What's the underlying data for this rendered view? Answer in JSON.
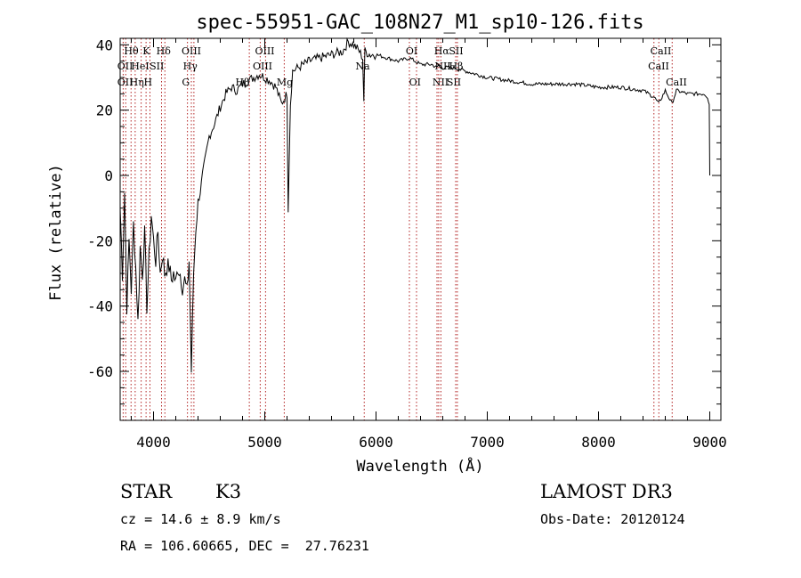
{
  "chart_data": {
    "type": "line",
    "title": "spec-55951-GAC_108N27_M1_sp10-126.fits",
    "xlabel": "Wavelength (Å)",
    "ylabel": "Flux (relative)",
    "xlim": [
      3700,
      9100
    ],
    "ylim": [
      -75,
      42
    ],
    "xticks": [
      4000,
      5000,
      6000,
      7000,
      8000,
      9000
    ],
    "yticks": [
      -60,
      -40,
      -20,
      0,
      20,
      40
    ],
    "grid": false,
    "line_color": "#000000",
    "marker_color": "#b22222",
    "series": [
      {
        "x": [
          3700,
          3720,
          3740,
          3760,
          3780,
          3800,
          3820,
          3840,
          3860,
          3880,
          3900,
          3920,
          3940,
          3960,
          3980,
          4000,
          4020,
          4040,
          4060,
          4080,
          4100,
          4120,
          4140,
          4160,
          4180,
          4200,
          4220,
          4240,
          4260,
          4280,
          4300,
          4320,
          4340,
          4360,
          4380,
          4400,
          4420,
          4440,
          4460,
          4480,
          4500,
          4550,
          4600,
          4650,
          4700,
          4750,
          4800,
          4850,
          4900,
          4950,
          5000,
          5050,
          5100,
          5150,
          5200,
          5210,
          5230,
          5250,
          5300,
          5400,
          5500,
          5600,
          5700,
          5750,
          5800,
          5850,
          5880,
          5890,
          5900,
          5950,
          6000,
          6100,
          6200,
          6300,
          6400,
          6500,
          6550,
          6563,
          6600,
          6700,
          6800,
          7000,
          7200,
          7400,
          7600,
          7800,
          8000,
          8200,
          8400,
          8500,
          8540,
          8600,
          8660,
          8700,
          8800,
          8900,
          8950,
          8980,
          8995,
          9000
        ],
        "y": [
          -10,
          -30,
          -5,
          -40,
          -20,
          -35,
          -15,
          -28,
          -45,
          -22,
          -30,
          -18,
          -40,
          -25,
          -12,
          -20,
          -26,
          -17,
          -30,
          -24,
          -30,
          -28,
          -28,
          -32,
          -30,
          -33,
          -28,
          -30,
          -34,
          -32,
          -36,
          -26,
          -60,
          -30,
          -16,
          -8,
          -5,
          0,
          4,
          8,
          12,
          16,
          21,
          25,
          27,
          26,
          28,
          29,
          30,
          31,
          30,
          29,
          27,
          22,
          25,
          -10,
          22,
          32,
          33,
          35,
          36,
          37,
          38,
          41,
          40,
          38,
          36,
          23,
          38,
          37,
          37,
          36,
          35,
          36,
          34,
          34,
          33,
          34,
          33,
          33,
          32,
          30,
          29,
          28,
          28,
          28,
          27,
          27,
          26,
          24,
          22,
          26,
          22,
          26,
          25,
          25,
          25,
          24,
          22,
          0
        ],
        "labeled": false
      }
    ],
    "lines": [
      {
        "x": 3727,
        "labels": [
          "OII"
        ]
      },
      {
        "x": 3750,
        "labels": [
          "OII"
        ]
      },
      {
        "x": 3798,
        "labels": [
          "Hθ"
        ]
      },
      {
        "x": 3835,
        "labels": [
          "Hη"
        ]
      },
      {
        "x": 3889,
        "labels": [
          "HeI"
        ]
      },
      {
        "x": 3933,
        "labels": [
          "K"
        ]
      },
      {
        "x": 3968,
        "labels": [
          "H"
        ]
      },
      {
        "x": 4072,
        "labels": [
          "SII"
        ]
      },
      {
        "x": 4102,
        "labels": [
          "Hδ"
        ]
      },
      {
        "x": 4305,
        "labels": [
          "G"
        ]
      },
      {
        "x": 4340,
        "labels": [
          "Hγ"
        ]
      },
      {
        "x": 4363,
        "labels": [
          "OIII"
        ]
      },
      {
        "x": 4861,
        "labels": [
          "Hβ"
        ]
      },
      {
        "x": 4959,
        "labels": [
          "OIII"
        ]
      },
      {
        "x": 5007,
        "labels": [
          "OIII"
        ]
      },
      {
        "x": 5175,
        "labels": [
          "Mg"
        ]
      },
      {
        "x": 5894,
        "labels": [
          "Na"
        ]
      },
      {
        "x": 6300,
        "labels": [
          "OI"
        ]
      },
      {
        "x": 6364,
        "labels": [
          "OI"
        ]
      },
      {
        "x": 6548,
        "labels": [
          "NII"
        ]
      },
      {
        "x": 6563,
        "labels": [
          "Hα"
        ]
      },
      {
        "x": 6583,
        "labels": [
          "NII"
        ]
      },
      {
        "x": 6716,
        "labels": [
          "SII"
        ]
      },
      {
        "x": 6731,
        "labels": [
          "SII"
        ]
      },
      {
        "x": 8498,
        "labels": [
          "CaII"
        ]
      },
      {
        "x": 8542,
        "labels": [
          "CaII"
        ]
      },
      {
        "x": 8662,
        "labels": [
          "CaII"
        ]
      }
    ],
    "line_labels": [
      {
        "text": "Hθ",
        "x": 3800,
        "row": 0
      },
      {
        "text": "K",
        "x": 3935,
        "row": 0
      },
      {
        "text": "Hδ",
        "x": 4090,
        "row": 0
      },
      {
        "text": "OIII",
        "x": 4340,
        "row": 0
      },
      {
        "text": "OIII",
        "x": 5000,
        "row": 0
      },
      {
        "text": "OI",
        "x": 6320,
        "row": 0
      },
      {
        "text": "Hα",
        "x": 6590,
        "row": 0
      },
      {
        "text": "SII",
        "x": 6720,
        "row": 0
      },
      {
        "text": "CaII",
        "x": 8560,
        "row": 0
      },
      {
        "text": "OII",
        "x": 3745,
        "row": 1
      },
      {
        "text": "HeI",
        "x": 3880,
        "row": 1
      },
      {
        "text": "SII",
        "x": 4030,
        "row": 1
      },
      {
        "text": "Hγ",
        "x": 4330,
        "row": 1
      },
      {
        "text": "OIII",
        "x": 4980,
        "row": 1
      },
      {
        "text": "Na",
        "x": 5880,
        "row": 1
      },
      {
        "text": "NII",
        "x": 6600,
        "row": 1
      },
      {
        "text": "Hβ",
        "x": 6720,
        "row": 1
      },
      {
        "text": "CaII",
        "x": 8540,
        "row": 1
      },
      {
        "text": "OII",
        "x": 3745,
        "row": 2
      },
      {
        "text": "Hη",
        "x": 3850,
        "row": 2
      },
      {
        "text": "H",
        "x": 3950,
        "row": 2
      },
      {
        "text": "G",
        "x": 4290,
        "row": 2
      },
      {
        "text": "Hβ",
        "x": 4800,
        "row": 2
      },
      {
        "text": "Mg",
        "x": 5180,
        "row": 2
      },
      {
        "text": "OI",
        "x": 6350,
        "row": 2
      },
      {
        "text": "NII",
        "x": 6580,
        "row": 2
      },
      {
        "text": "SII",
        "x": 6700,
        "row": 2
      },
      {
        "text": "CaII",
        "x": 8700,
        "row": 2
      }
    ]
  },
  "info": {
    "object_type": "STAR",
    "subclass": "K3",
    "cz": "cz = 14.6 ± 8.9 km/s",
    "coords": "RA = 106.60665, DEC =  27.76231",
    "survey": "LAMOST DR3",
    "obs_date": "Obs-Date: 20120124"
  }
}
